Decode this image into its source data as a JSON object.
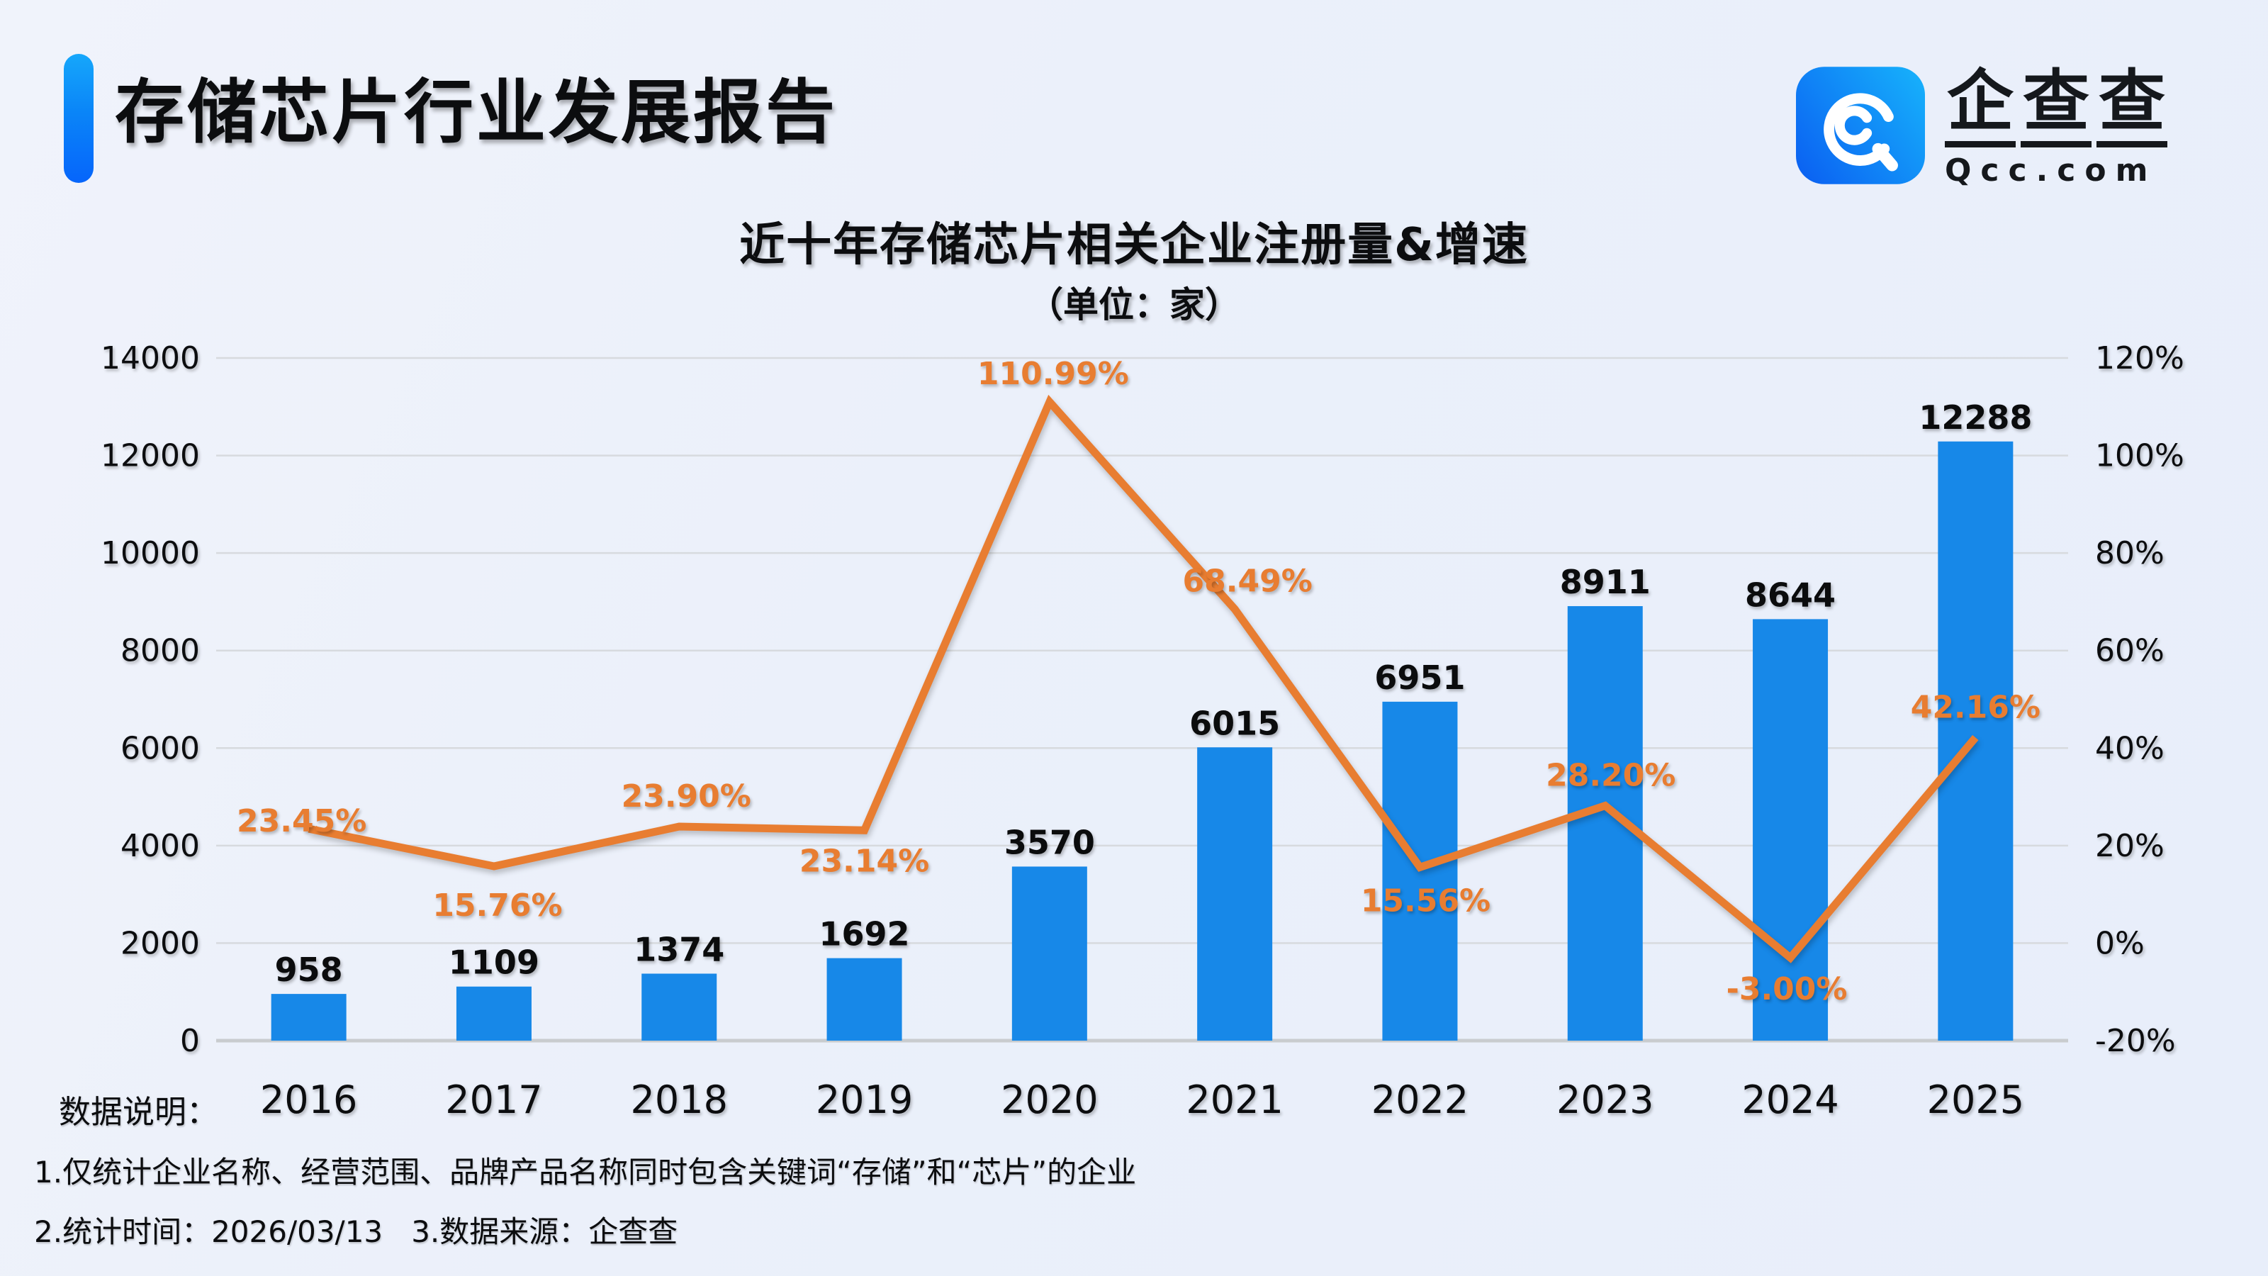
{
  "header": {
    "title": "存储芯片行业发展报告",
    "accent_color_top": "#16a7fb",
    "accent_color_bottom": "#0665fb"
  },
  "logo": {
    "name": "企查查",
    "domain": "Qcc.com",
    "icon": "qcc-spiral-icon",
    "icon_color_start": "#0b63f2",
    "icon_color_end": "#16aefb"
  },
  "chart_data": {
    "type": "combo",
    "title": "近十年存储芯片相关企业注册量&增速",
    "subtitle": "（单位：家）",
    "categories": [
      "2016",
      "2017",
      "2018",
      "2019",
      "2020",
      "2021",
      "2022",
      "2023",
      "2024",
      "2025"
    ],
    "series": [
      {
        "name": "注册量",
        "type": "bar",
        "axis": "left",
        "color": "#1788e8",
        "values": [
          958,
          1109,
          1374,
          1692,
          3570,
          6015,
          6951,
          8911,
          8644,
          12288
        ]
      },
      {
        "name": "增速",
        "type": "line",
        "axis": "right",
        "color": "#e87d31",
        "values": [
          23.45,
          15.76,
          23.9,
          23.14,
          110.99,
          68.49,
          15.56,
          28.2,
          -3.0,
          42.16
        ],
        "labels": [
          "23.45%",
          "15.76%",
          "23.90%",
          "23.14%",
          "110.99%",
          "68.49%",
          "15.56%",
          "28.20%",
          "-3.00%",
          "42.16%"
        ],
        "label_positions": [
          "above",
          "below",
          "above",
          "below",
          "above",
          "above",
          "below",
          "above",
          "below",
          "above"
        ],
        "label_x_offsets": [
          -10,
          5,
          10,
          0,
          5,
          18,
          8,
          8,
          -5,
          0
        ],
        "label_y_offsets": [
          32,
          8,
          0,
          -4,
          3,
          3,
          0,
          0,
          -3,
          0
        ]
      }
    ],
    "left_axis": {
      "min": 0,
      "max": 14000,
      "step": 2000,
      "tick_labels": [
        "0",
        "2000",
        "4000",
        "6000",
        "8000",
        "10000",
        "12000",
        "14000"
      ]
    },
    "right_axis": {
      "min": -20,
      "max": 120,
      "step": 20,
      "tick_labels": [
        "-20%",
        "0%",
        "20%",
        "40%",
        "60%",
        "80%",
        "100%",
        "120%"
      ]
    },
    "grid": true,
    "legend": "none"
  },
  "notes": {
    "label": "数据说明：",
    "lines": [
      "1.仅统计企业名称、经营范围、品牌产品名称同时包含关键词“存储”和“芯片”的企业",
      "2.统计时间：2026/03/13   3.数据来源：企查查"
    ]
  }
}
